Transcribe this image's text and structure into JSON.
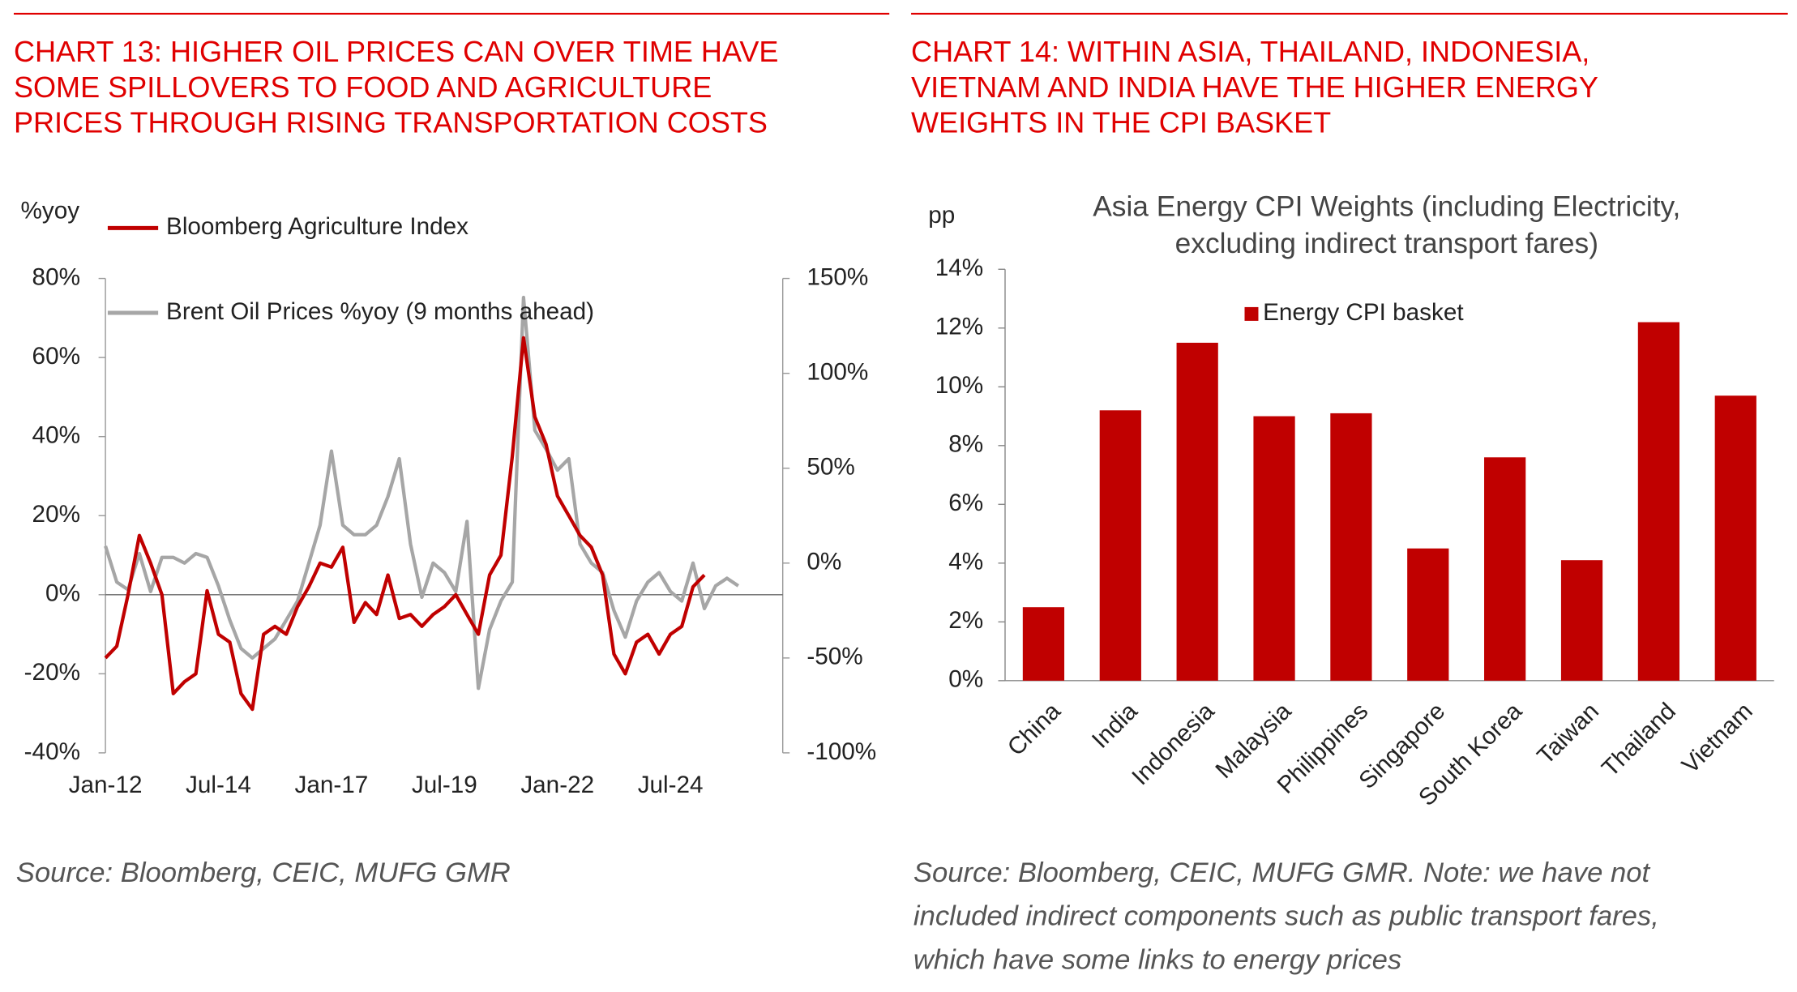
{
  "chart_data": [
    {
      "type": "line",
      "heading": [
        "CHART 13: HIGHER OIL PRICES CAN OVER TIME HAVE",
        "SOME SPILLOVERS TO FOOD AND AGRICULTURE",
        "PRICES THROUGH RISING TRANSPORTATION COSTS"
      ],
      "ylabel": "%yoy",
      "source": [
        "Source: Bloomberg, CEIC, MUFG GMR"
      ],
      "categories": [
        "Jan-12",
        null,
        null,
        null,
        null,
        null,
        null,
        null,
        null,
        null,
        "Jul-14",
        null,
        null,
        null,
        null,
        null,
        null,
        null,
        null,
        null,
        "Jan-17",
        null,
        null,
        null,
        null,
        null,
        null,
        null,
        null,
        null,
        "Jul-19",
        null,
        null,
        null,
        null,
        null,
        null,
        null,
        null,
        null,
        "Jan-22",
        null,
        null,
        null,
        null,
        null,
        null,
        null,
        null,
        null,
        "Jul-24",
        null,
        null,
        null,
        null,
        null,
        null
      ],
      "series": [
        {
          "name": "Bloomberg Agriculture Index",
          "color": "#c00000",
          "values": [
            -16,
            -13,
            0,
            15,
            8,
            0,
            -25,
            -22,
            -20,
            1,
            -10,
            -12,
            -25,
            -29,
            -10,
            -8,
            -10,
            -3,
            2,
            8,
            7,
            12,
            -7,
            -2,
            -5,
            5,
            -6,
            -5,
            -8,
            -5,
            -3,
            0,
            -5,
            -10,
            5,
            10,
            35,
            65,
            45,
            38,
            25,
            20,
            15,
            12,
            5,
            -15,
            -20,
            -12,
            -10,
            -15,
            -10,
            -8,
            2,
            5,
            null,
            null,
            null
          ]
        },
        {
          "name": "Brent Oil Prices %yoy (9 months ahead)",
          "color": "#a6a6a6",
          "axis": "y2",
          "values": [
            9,
            -10,
            -14,
            5,
            -15,
            3,
            3,
            0,
            5,
            3,
            -12,
            -30,
            -45,
            -50,
            -45,
            -40,
            -30,
            -20,
            0,
            20,
            59,
            20,
            15,
            15,
            20,
            35,
            55,
            10,
            -18,
            0,
            -5,
            -15,
            22,
            -66,
            -35,
            -20,
            -10,
            140,
            70,
            60,
            49,
            55,
            10,
            0,
            -5,
            -25,
            -39,
            -20,
            -10,
            -5,
            -15,
            -20,
            0,
            -24,
            -12,
            -8,
            -12
          ]
        }
      ],
      "ylim": [
        -40,
        80
      ],
      "yticks": [
        {
          "value": -40,
          "label": "-40%"
        },
        {
          "value": -20,
          "label": "-20%"
        },
        {
          "value": 0,
          "label": "0%"
        },
        {
          "value": 20,
          "label": "20%"
        },
        {
          "value": 40,
          "label": "40%"
        },
        {
          "value": 60,
          "label": "60%"
        },
        {
          "value": 80,
          "label": "80%"
        }
      ],
      "y2lim": [
        -100,
        150
      ],
      "y2ticks": [
        {
          "value": -100,
          "label": "-100%"
        },
        {
          "value": -50,
          "label": "-50%"
        },
        {
          "value": 0,
          "label": "0%"
        },
        {
          "value": 50,
          "label": "50%"
        },
        {
          "value": 100,
          "label": "100%"
        },
        {
          "value": 150,
          "label": "150%"
        }
      ]
    },
    {
      "type": "bar",
      "heading": [
        "CHART 14: WITHIN ASIA, THAILAND, INDONESIA,",
        "VIETNAM AND INDIA HAVE THE HIGHER ENERGY",
        "WEIGHTS IN THE CPI BASKET"
      ],
      "title": [
        "Asia Energy CPI Weights (including Electricity,",
        "excluding indirect transport fares)"
      ],
      "ylabel": "pp",
      "source": [
        "Source: Bloomberg, CEIC, MUFG GMR. Note: we have not",
        "included indirect components such as public transport fares,",
        "which have some links to energy prices"
      ],
      "categories": [
        "China",
        "India",
        "Indonesia",
        "Malaysia",
        "Philippines",
        "Singapore",
        "South Korea",
        "Taiwan",
        "Thailand",
        "Vietnam"
      ],
      "series": [
        {
          "name": "Energy CPI basket",
          "color": "#c00000",
          "values": [
            2.5,
            9.2,
            11.5,
            9.0,
            9.1,
            4.5,
            7.6,
            4.1,
            12.2,
            9.7
          ]
        }
      ],
      "ylim": [
        0,
        14
      ],
      "yticks": [
        {
          "value": 0,
          "label": "0%"
        },
        {
          "value": 2,
          "label": "2%"
        },
        {
          "value": 4,
          "label": "4%"
        },
        {
          "value": 6,
          "label": "6%"
        },
        {
          "value": 8,
          "label": "8%"
        },
        {
          "value": 10,
          "label": "10%"
        },
        {
          "value": 12,
          "label": "12%"
        },
        {
          "value": 14,
          "label": "14%"
        }
      ]
    }
  ]
}
